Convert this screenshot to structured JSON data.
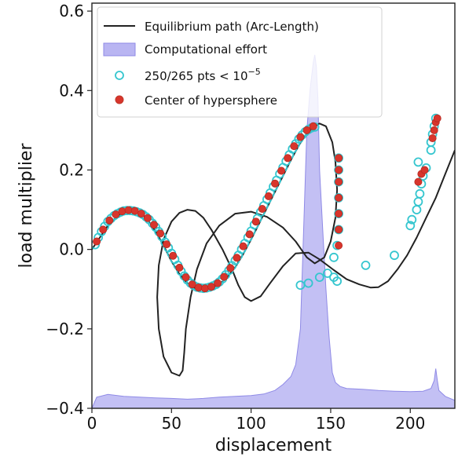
{
  "chart_data": {
    "type": "line",
    "xlabel": "displacement",
    "ylabel": "load multiplier",
    "xlim": [
      0,
      228
    ],
    "ylim": [
      -0.4,
      0.62
    ],
    "xticks": [
      0,
      50,
      100,
      150,
      200
    ],
    "xtick_labels": [
      "0",
      "50",
      "100",
      "150",
      "200"
    ],
    "yticks": [
      -0.4,
      -0.2,
      0.0,
      0.2,
      0.4,
      0.6
    ],
    "ytick_labels": [
      "−0.4",
      "−0.2",
      "0.0",
      "0.2",
      "0.4",
      "0.6"
    ],
    "grid": false,
    "legend_position": "top-left",
    "colors": {
      "path": "#222222",
      "effort_fill": "#b9b5f2",
      "effort_edge": "#8f8ae6",
      "converged": "#35c6cf",
      "center": "#d8352c"
    },
    "legend": [
      {
        "label": "Equilibrium path (Arc-Length)",
        "kind": "line"
      },
      {
        "label": "Computational effort",
        "kind": "patch"
      },
      {
        "label": "250/265 pts < 10",
        "superscript": "−5",
        "kind": "marker-open"
      },
      {
        "label": "Center of hypersphere",
        "kind": "marker-filled"
      }
    ],
    "series": [
      {
        "name": "Equilibrium path (Arc-Length)",
        "kind": "line",
        "points": [
          [
            0,
            0
          ],
          [
            5,
            0.03
          ],
          [
            10,
            0.06
          ],
          [
            15,
            0.08
          ],
          [
            20,
            0.093
          ],
          [
            25,
            0.098
          ],
          [
            30,
            0.093
          ],
          [
            35,
            0.075
          ],
          [
            40,
            0.045
          ],
          [
            45,
            0.01
          ],
          [
            50,
            -0.03
          ],
          [
            55,
            -0.062
          ],
          [
            60,
            -0.085
          ],
          [
            65,
            -0.098
          ],
          [
            70,
            -0.1
          ],
          [
            75,
            -0.097
          ],
          [
            80,
            -0.088
          ],
          [
            85,
            -0.07
          ],
          [
            90,
            -0.045
          ],
          [
            95,
            -0.012
          ],
          [
            100,
            0.025
          ],
          [
            105,
            0.065
          ],
          [
            110,
            0.105
          ],
          [
            115,
            0.145
          ],
          [
            120,
            0.185
          ],
          [
            125,
            0.225
          ],
          [
            130,
            0.262
          ],
          [
            135,
            0.292
          ],
          [
            140,
            0.31
          ],
          [
            143,
            0.317
          ],
          [
            147,
            0.31
          ],
          [
            151,
            0.27
          ],
          [
            153,
            0.22
          ],
          [
            154,
            0.15
          ],
          [
            153,
            0.08
          ],
          [
            150,
            0.02
          ],
          [
            146,
            -0.02
          ],
          [
            140,
            -0.035
          ],
          [
            135,
            -0.02
          ],
          [
            128,
            0.02
          ],
          [
            120,
            0.055
          ],
          [
            110,
            0.082
          ],
          [
            100,
            0.095
          ],
          [
            90,
            0.09
          ],
          [
            80,
            0.06
          ],
          [
            72,
            0.015
          ],
          [
            66,
            -0.05
          ],
          [
            62,
            -0.12
          ],
          [
            59,
            -0.2
          ],
          [
            58,
            -0.26
          ],
          [
            57,
            -0.305
          ],
          [
            55,
            -0.318
          ],
          [
            50,
            -0.31
          ],
          [
            45,
            -0.27
          ],
          [
            42,
            -0.2
          ],
          [
            41,
            -0.12
          ],
          [
            42,
            -0.04
          ],
          [
            45,
            0.025
          ],
          [
            50,
            0.07
          ],
          [
            55,
            0.092
          ],
          [
            60,
            0.1
          ],
          [
            65,
            0.097
          ],
          [
            70,
            0.08
          ],
          [
            75,
            0.05
          ],
          [
            82,
            0.0
          ],
          [
            88,
            -0.05
          ],
          [
            92,
            -0.09
          ],
          [
            96,
            -0.12
          ],
          [
            100,
            -0.13
          ],
          [
            106,
            -0.118
          ],
          [
            112,
            -0.085
          ],
          [
            120,
            -0.042
          ],
          [
            128,
            -0.01
          ],
          [
            136,
            -0.008
          ],
          [
            143,
            -0.025
          ],
          [
            152,
            -0.052
          ],
          [
            160,
            -0.075
          ],
          [
            168,
            -0.088
          ],
          [
            175,
            -0.096
          ],
          [
            180,
            -0.095
          ],
          [
            186,
            -0.08
          ],
          [
            192,
            -0.05
          ],
          [
            198,
            -0.015
          ],
          [
            204,
            0.03
          ],
          [
            210,
            0.08
          ],
          [
            216,
            0.13
          ],
          [
            222,
            0.19
          ],
          [
            228,
            0.25
          ]
        ]
      },
      {
        "name": "Computational effort",
        "kind": "area",
        "baseline": -0.4,
        "points": [
          [
            0,
            -0.4
          ],
          [
            3,
            -0.372
          ],
          [
            10,
            -0.365
          ],
          [
            20,
            -0.37
          ],
          [
            30,
            -0.372
          ],
          [
            40,
            -0.374
          ],
          [
            50,
            -0.375
          ],
          [
            60,
            -0.377
          ],
          [
            70,
            -0.375
          ],
          [
            80,
            -0.372
          ],
          [
            90,
            -0.37
          ],
          [
            100,
            -0.368
          ],
          [
            108,
            -0.364
          ],
          [
            115,
            -0.355
          ],
          [
            120,
            -0.34
          ],
          [
            125,
            -0.32
          ],
          [
            128,
            -0.29
          ],
          [
            131,
            -0.2
          ],
          [
            133,
            0.05
          ],
          [
            135,
            0.3
          ],
          [
            137,
            0.4
          ],
          [
            139,
            0.47
          ],
          [
            140,
            0.49
          ],
          [
            141,
            0.46
          ],
          [
            142,
            0.38
          ],
          [
            143,
            0.2
          ],
          [
            145,
            0.05
          ],
          [
            147,
            -0.1
          ],
          [
            149,
            -0.22
          ],
          [
            151,
            -0.31
          ],
          [
            153,
            -0.335
          ],
          [
            156,
            -0.345
          ],
          [
            160,
            -0.35
          ],
          [
            170,
            -0.352
          ],
          [
            180,
            -0.355
          ],
          [
            190,
            -0.357
          ],
          [
            200,
            -0.358
          ],
          [
            208,
            -0.357
          ],
          [
            213,
            -0.35
          ],
          [
            215,
            -0.33
          ],
          [
            216,
            -0.3
          ],
          [
            217,
            -0.33
          ],
          [
            218,
            -0.355
          ],
          [
            222,
            -0.37
          ],
          [
            228,
            -0.38
          ],
          [
            228,
            -0.4
          ]
        ]
      },
      {
        "name": "250/265 pts < 10⁻⁵",
        "kind": "scatter-open",
        "points": [
          [
            2,
            0.012
          ],
          [
            4,
            0.03
          ],
          [
            6,
            0.045
          ],
          [
            8,
            0.058
          ],
          [
            10,
            0.07
          ],
          [
            12,
            0.078
          ],
          [
            14,
            0.085
          ],
          [
            16,
            0.09
          ],
          [
            18,
            0.094
          ],
          [
            20,
            0.097
          ],
          [
            22,
            0.098
          ],
          [
            24,
            0.098
          ],
          [
            26,
            0.097
          ],
          [
            28,
            0.095
          ],
          [
            30,
            0.092
          ],
          [
            32,
            0.088
          ],
          [
            34,
            0.082
          ],
          [
            36,
            0.075
          ],
          [
            38,
            0.066
          ],
          [
            40,
            0.056
          ],
          [
            42,
            0.045
          ],
          [
            44,
            0.032
          ],
          [
            46,
            0.018
          ],
          [
            48,
            0.004
          ],
          [
            50,
            -0.01
          ],
          [
            52,
            -0.025
          ],
          [
            54,
            -0.04
          ],
          [
            56,
            -0.055
          ],
          [
            58,
            -0.067
          ],
          [
            60,
            -0.077
          ],
          [
            62,
            -0.085
          ],
          [
            64,
            -0.091
          ],
          [
            66,
            -0.095
          ],
          [
            68,
            -0.097
          ],
          [
            70,
            -0.098
          ],
          [
            72,
            -0.097
          ],
          [
            74,
            -0.095
          ],
          [
            76,
            -0.092
          ],
          [
            78,
            -0.088
          ],
          [
            80,
            -0.082
          ],
          [
            82,
            -0.074
          ],
          [
            84,
            -0.064
          ],
          [
            86,
            -0.053
          ],
          [
            88,
            -0.041
          ],
          [
            90,
            -0.028
          ],
          [
            92,
            -0.015
          ],
          [
            94,
            0.0
          ],
          [
            96,
            0.015
          ],
          [
            98,
            0.03
          ],
          [
            100,
            0.046
          ],
          [
            102,
            0.062
          ],
          [
            104,
            0.078
          ],
          [
            106,
            0.094
          ],
          [
            108,
            0.11
          ],
          [
            110,
            0.126
          ],
          [
            112,
            0.142
          ],
          [
            114,
            0.158
          ],
          [
            116,
            0.174
          ],
          [
            118,
            0.19
          ],
          [
            120,
            0.206
          ],
          [
            122,
            0.222
          ],
          [
            124,
            0.238
          ],
          [
            126,
            0.253
          ],
          [
            128,
            0.266
          ],
          [
            130,
            0.278
          ],
          [
            132,
            0.288
          ],
          [
            134,
            0.296
          ],
          [
            136,
            0.302
          ],
          [
            138,
            0.306
          ],
          [
            140,
            0.308
          ],
          [
            131,
            -0.09
          ],
          [
            136,
            -0.085
          ],
          [
            143,
            -0.07
          ],
          [
            148,
            -0.06
          ],
          [
            152,
            -0.07
          ],
          [
            154,
            -0.08
          ],
          [
            152,
            -0.02
          ],
          [
            154,
            0.01
          ],
          [
            155,
            0.05
          ],
          [
            155,
            0.09
          ],
          [
            155,
            0.13
          ],
          [
            155,
            0.17
          ],
          [
            155,
            0.2
          ],
          [
            155,
            0.23
          ],
          [
            172,
            -0.04
          ],
          [
            190,
            -0.015
          ],
          [
            200,
            0.06
          ],
          [
            201,
            0.075
          ],
          [
            204,
            0.1
          ],
          [
            205,
            0.12
          ],
          [
            206,
            0.14
          ],
          [
            207,
            0.165
          ],
          [
            208,
            0.185
          ],
          [
            210,
            0.205
          ],
          [
            205,
            0.22
          ],
          [
            213,
            0.25
          ],
          [
            213,
            0.27
          ],
          [
            214,
            0.29
          ],
          [
            215,
            0.31
          ],
          [
            216,
            0.33
          ]
        ]
      },
      {
        "name": "Center of hypersphere",
        "kind": "scatter-filled",
        "points": [
          [
            3,
            0.02
          ],
          [
            7,
            0.05
          ],
          [
            11,
            0.073
          ],
          [
            15,
            0.088
          ],
          [
            19,
            0.096
          ],
          [
            23,
            0.099
          ],
          [
            27,
            0.097
          ],
          [
            31,
            0.09
          ],
          [
            35,
            0.079
          ],
          [
            39,
            0.062
          ],
          [
            43,
            0.04
          ],
          [
            47,
            0.013
          ],
          [
            51,
            -0.016
          ],
          [
            55,
            -0.046
          ],
          [
            59,
            -0.07
          ],
          [
            63,
            -0.088
          ],
          [
            67,
            -0.096
          ],
          [
            71,
            -0.098
          ],
          [
            75,
            -0.094
          ],
          [
            79,
            -0.085
          ],
          [
            83,
            -0.069
          ],
          [
            87,
            -0.047
          ],
          [
            91,
            -0.021
          ],
          [
            95,
            0.008
          ],
          [
            99,
            0.038
          ],
          [
            103,
            0.07
          ],
          [
            107,
            0.102
          ],
          [
            111,
            0.134
          ],
          [
            115,
            0.166
          ],
          [
            119,
            0.198
          ],
          [
            123,
            0.23
          ],
          [
            127,
            0.26
          ],
          [
            131,
            0.283
          ],
          [
            135,
            0.3
          ],
          [
            139,
            0.31
          ],
          [
            155,
            0.01
          ],
          [
            155,
            0.05
          ],
          [
            155,
            0.09
          ],
          [
            155,
            0.13
          ],
          [
            155,
            0.17
          ],
          [
            155,
            0.2
          ],
          [
            155,
            0.23
          ],
          [
            205,
            0.17
          ],
          [
            207,
            0.19
          ],
          [
            209,
            0.2
          ],
          [
            214,
            0.28
          ],
          [
            215,
            0.3
          ],
          [
            216,
            0.32
          ],
          [
            217,
            0.33
          ]
        ]
      }
    ]
  }
}
